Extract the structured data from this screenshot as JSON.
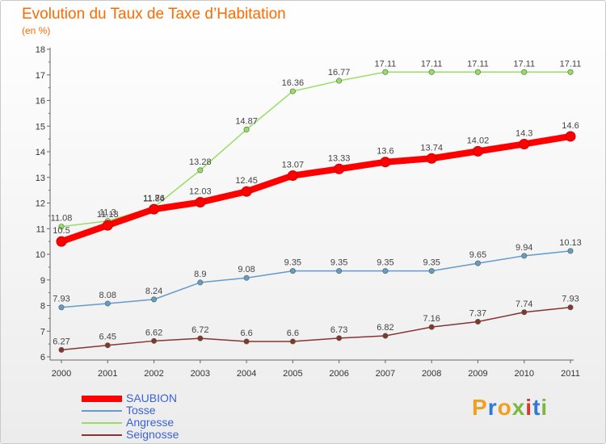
{
  "page": {
    "title": "Evolution du Taux de Taxe d’Habitation",
    "subtitle": "(en %)"
  },
  "logo": {
    "text": "Proxiti"
  },
  "chart_data": {
    "type": "line",
    "x": [
      "2000",
      "2001",
      "2002",
      "2003",
      "2004",
      "2005",
      "2006",
      "2007",
      "2008",
      "2009",
      "2010",
      "2011"
    ],
    "yticks": [
      "6",
      "7",
      "8",
      "9",
      "10",
      "11",
      "12",
      "13",
      "14",
      "15",
      "16",
      "17",
      "18"
    ],
    "ylim": [
      6,
      18
    ],
    "grid": false,
    "legend_position": "bottom-left",
    "series": [
      {
        "name": "SAUBION",
        "color": "#ff0000",
        "values": [
          10.5,
          11.13,
          11.76,
          12.03,
          12.45,
          13.07,
          13.33,
          13.6,
          13.74,
          14.02,
          14.3,
          14.6
        ],
        "labels": [
          "10.5",
          "11.13",
          "11.76",
          "12.03",
          "12.45",
          "13.07",
          "13.33",
          "13.6",
          "13.74",
          "14.02",
          "14.3",
          "14.6"
        ]
      },
      {
        "name": "Tosse",
        "color": "#6699cc",
        "values": [
          7.93,
          8.08,
          8.24,
          8.9,
          9.08,
          9.35,
          9.35,
          9.35,
          9.35,
          9.65,
          9.94,
          10.13
        ],
        "labels": [
          "7.93",
          "8.08",
          "8.24",
          "8.9",
          "9.08",
          "9.35",
          "9.35",
          "9.35",
          "9.35",
          "9.65",
          "9.94",
          "10.13"
        ]
      },
      {
        "name": "Angresse",
        "color": "#99dd66",
        "values": [
          11.08,
          11.3,
          11.84,
          13.28,
          14.87,
          16.36,
          16.77,
          17.11,
          17.11,
          17.11,
          17.11,
          17.11
        ],
        "labels": [
          "11.08",
          "11.3",
          "11.84",
          "13.28",
          "14.87",
          "16.36",
          "16.77",
          "17.11",
          "17.11",
          "17.11",
          "17.11",
          "17.11"
        ]
      },
      {
        "name": "Seignosse",
        "color": "#883333",
        "values": [
          6.27,
          6.45,
          6.62,
          6.72,
          6.6,
          6.6,
          6.73,
          6.82,
          7.16,
          7.37,
          7.74,
          7.93
        ],
        "labels": [
          "6.27",
          "6.45",
          "6.62",
          "6.72",
          "6.6",
          "6.6",
          "6.73",
          "6.82",
          "7.16",
          "7.37",
          "7.74",
          "7.93"
        ]
      }
    ]
  }
}
